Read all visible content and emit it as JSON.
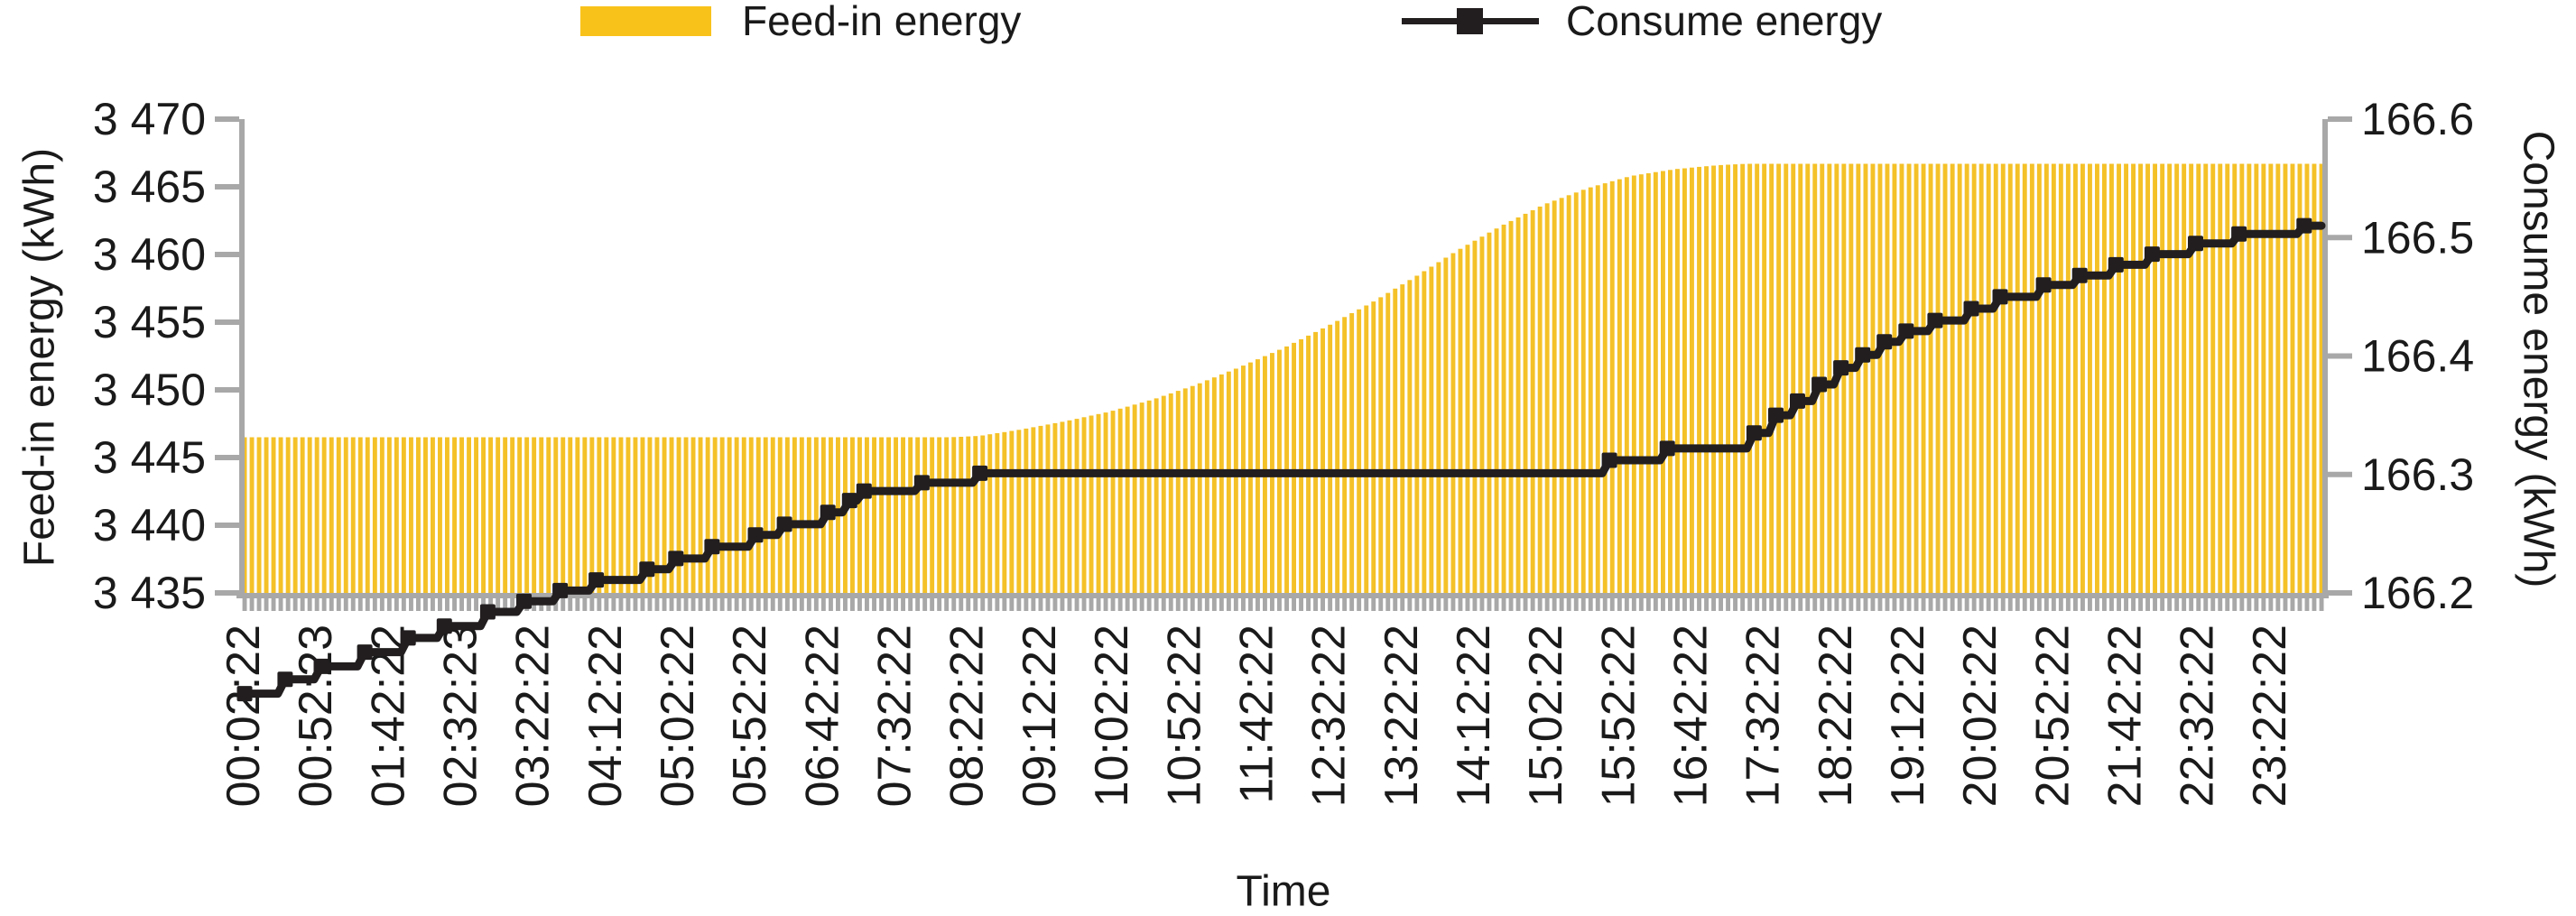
{
  "legend": {
    "items": [
      {
        "label": "Feed-in energy",
        "swatch": "bar",
        "color": "#F9C21B"
      },
      {
        "label": "Consume energy",
        "swatch": "line-marker",
        "color": "#221E1F"
      }
    ]
  },
  "chart_data": {
    "type": "bar+line",
    "title": "",
    "x_axis": {
      "title": "Time",
      "start_minute": 2,
      "end_minute": 1437,
      "bar_interval_minutes": 5,
      "label_interval_minutes": 50,
      "tick_labels": [
        "00:02:22",
        "00:52:23",
        "01:42:22",
        "02:32:23",
        "03:22:22",
        "04:12:22",
        "05:02:22",
        "05:52:22",
        "06:42:22",
        "07:32:22",
        "08:22:22",
        "09:12:22",
        "10:02:22",
        "10:52:22",
        "11:42:22",
        "12:32:22",
        "13:22:22",
        "14:12:22",
        "15:02:22",
        "15:52:22",
        "16:42:22",
        "17:32:22",
        "18:22:22",
        "19:12:22",
        "20:02:22",
        "20:52:22",
        "21:42:22",
        "22:32:22",
        "23:22:22"
      ]
    },
    "y_left": {
      "title": "Feed-in energy (kWh)",
      "min": 3435,
      "max": 3470,
      "tick_step": 5,
      "tick_labels": [
        "3 435",
        "3 440",
        "3 445",
        "3 450",
        "3 455",
        "3 460",
        "3 465",
        "3 470"
      ]
    },
    "y_right": {
      "title": "Consume energy (kWh)",
      "min": 166.2,
      "max": 166.6,
      "tick_step": 0.1,
      "tick_labels": [
        "166.2",
        "166.3",
        "166.4",
        "166.5",
        "166.6"
      ]
    },
    "grid": "off",
    "legend_position": "top",
    "colors": {
      "bar": "#F4C127",
      "line": "#221E1F",
      "axis": "#A8A8A8",
      "text": "#1a1a1a"
    },
    "series": [
      {
        "name": "Feed-in energy",
        "type": "bar-area",
        "axis": "left",
        "note": "dense 5-min bars; values in kWh; flat ~3446.5 until ~08:10, S-curve rise to plateau ~3466.7 from ~17:10",
        "points": [
          [
            2,
            3446.5
          ],
          [
            490,
            3446.5
          ],
          [
            510,
            3446.6
          ],
          [
            540,
            3447.1
          ],
          [
            570,
            3447.7
          ],
          [
            600,
            3448.4
          ],
          [
            630,
            3449.3
          ],
          [
            660,
            3450.4
          ],
          [
            690,
            3451.7
          ],
          [
            720,
            3453.1
          ],
          [
            750,
            3454.7
          ],
          [
            780,
            3456.4
          ],
          [
            810,
            3458.3
          ],
          [
            840,
            3460.3
          ],
          [
            870,
            3462.1
          ],
          [
            900,
            3463.7
          ],
          [
            930,
            3464.9
          ],
          [
            960,
            3465.8
          ],
          [
            990,
            3466.3
          ],
          [
            1020,
            3466.6
          ],
          [
            1040,
            3466.7
          ],
          [
            1437,
            3466.7
          ]
        ]
      },
      {
        "name": "Consume energy",
        "type": "step-line",
        "axis": "right",
        "note": "stepped cumulative meter reading in kWh",
        "points": [
          [
            2,
            166.115
          ],
          [
            30,
            166.127
          ],
          [
            55,
            166.138
          ],
          [
            85,
            166.15
          ],
          [
            115,
            166.162
          ],
          [
            140,
            166.172
          ],
          [
            170,
            166.184
          ],
          [
            195,
            166.193
          ],
          [
            220,
            166.202
          ],
          [
            245,
            166.211
          ],
          [
            280,
            166.22
          ],
          [
            300,
            166.229
          ],
          [
            325,
            166.239
          ],
          [
            355,
            166.249
          ],
          [
            375,
            166.258
          ],
          [
            405,
            166.268
          ],
          [
            420,
            166.278
          ],
          [
            430,
            166.286
          ],
          [
            470,
            166.293
          ],
          [
            510,
            166.301
          ],
          [
            945,
            166.312
          ],
          [
            985,
            166.322
          ],
          [
            1045,
            166.335
          ],
          [
            1060,
            166.35
          ],
          [
            1075,
            166.362
          ],
          [
            1090,
            166.376
          ],
          [
            1105,
            166.39
          ],
          [
            1120,
            166.401
          ],
          [
            1135,
            166.412
          ],
          [
            1150,
            166.421
          ],
          [
            1170,
            166.43
          ],
          [
            1195,
            166.44
          ],
          [
            1215,
            166.45
          ],
          [
            1245,
            166.46
          ],
          [
            1270,
            166.468
          ],
          [
            1295,
            166.477
          ],
          [
            1320,
            166.486
          ],
          [
            1350,
            166.495
          ],
          [
            1380,
            166.503
          ],
          [
            1425,
            166.51
          ]
        ]
      }
    ]
  }
}
